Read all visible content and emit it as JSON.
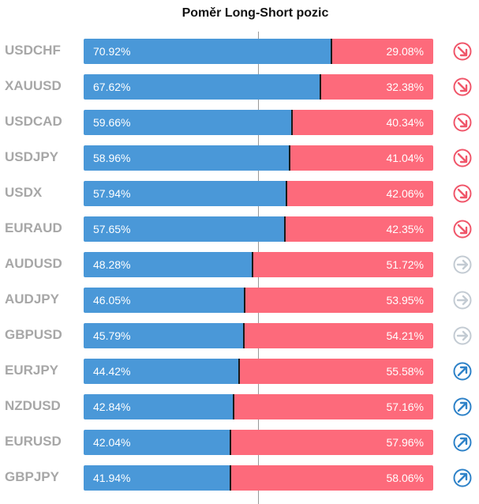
{
  "title": "Poměr Long-Short pozic",
  "colors": {
    "long": "#4a98d8",
    "short": "#fd6a7b",
    "trend_down": "#f0566a",
    "trend_side": "#c3cbd3",
    "trend_up": "#2e82c8"
  },
  "chart_data": {
    "type": "bar",
    "orientation": "horizontal",
    "stacked": true,
    "title": "Poměr Long-Short pozic",
    "categories": [
      "USDCHF",
      "XAUUSD",
      "USDCAD",
      "USDJPY",
      "USDX",
      "EURAUD",
      "AUDUSD",
      "AUDJPY",
      "GBPUSD",
      "EURJPY",
      "NZDUSD",
      "EURUSD",
      "GBPJPY"
    ],
    "series": [
      {
        "values": [
          70.92,
          67.62,
          59.66,
          58.96,
          57.94,
          57.65,
          48.28,
          46.05,
          45.79,
          44.42,
          42.84,
          42.04,
          41.94
        ]
      },
      {
        "values": [
          29.08,
          32.38,
          40.34,
          41.04,
          42.06,
          42.35,
          51.72,
          53.95,
          54.21,
          55.58,
          57.16,
          57.96,
          58.06
        ]
      }
    ],
    "long_labels": [
      "70.92%",
      "67.62%",
      "59.66%",
      "58.96%",
      "57.94%",
      "57.65%",
      "48.28%",
      "46.05%",
      "45.79%",
      "44.42%",
      "42.84%",
      "42.04%",
      "41.94%"
    ],
    "short_labels": [
      "29.08%",
      "32.38%",
      "40.34%",
      "41.04%",
      "42.06%",
      "42.35%",
      "51.72%",
      "53.95%",
      "54.21%",
      "55.58%",
      "57.16%",
      "57.96%",
      "58.06%"
    ],
    "trend_icons": [
      "down",
      "down",
      "down",
      "down",
      "down",
      "down",
      "right",
      "right",
      "right",
      "up",
      "up",
      "up",
      "up"
    ],
    "xlim": [
      0,
      100
    ],
    "reference_line": 50
  }
}
